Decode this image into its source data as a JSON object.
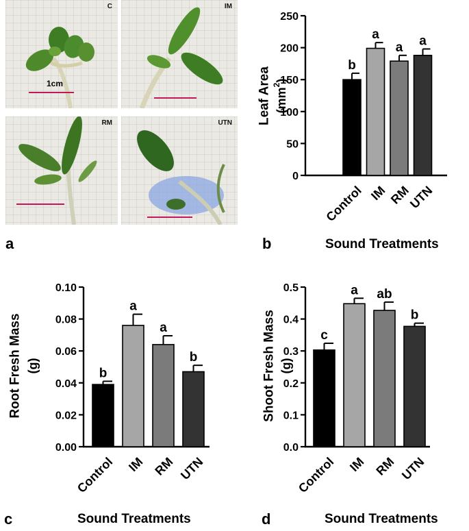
{
  "panels": {
    "a": {
      "letter": "a",
      "photos": [
        {
          "label": "C",
          "scale_label": "1cm"
        },
        {
          "label": "IM"
        },
        {
          "label": "RM"
        },
        {
          "label": "UTN"
        }
      ]
    },
    "b": {
      "letter": "b",
      "xlabel": "Sound Treatments"
    },
    "c": {
      "letter": "c",
      "xlabel": "Sound Treatments"
    },
    "d": {
      "letter": "d",
      "xlabel": "Sound Treatments"
    }
  },
  "colors": {
    "bars": [
      "#000000",
      "#a6a6a6",
      "#7b7b7b",
      "#333333"
    ],
    "scale_bar": "#c2185b",
    "grid_bg": "#eceae4",
    "grid_line": "#c9c6c0"
  },
  "chart_data": [
    {
      "id": "b",
      "type": "bar",
      "categories": [
        "Control",
        "IM",
        "RM",
        "UTN"
      ],
      "values": [
        150,
        199,
        179,
        188
      ],
      "errors": [
        10,
        9,
        9,
        10
      ],
      "letters": [
        "b",
        "a",
        "a",
        "a"
      ],
      "ylabel": "Leaf Area",
      "yunit_prefix": "(mm",
      "yunit_sup": "2",
      "yunit_suffix": ")",
      "ylim": [
        0,
        250
      ],
      "yticks": [
        "0",
        "50",
        "100",
        "150",
        "200",
        "250"
      ]
    },
    {
      "id": "c",
      "type": "bar",
      "categories": [
        "Control",
        "IM",
        "RM",
        "UTN"
      ],
      "values": [
        0.039,
        0.076,
        0.064,
        0.047
      ],
      "errors": [
        0.002,
        0.007,
        0.0055,
        0.004
      ],
      "letters": [
        "b",
        "a",
        "a",
        "b"
      ],
      "ylabel": "Root Fresh Mass",
      "yunit": "(g)",
      "ylim": [
        0,
        0.1
      ],
      "yticks": [
        "0.00",
        "0.02",
        "0.04",
        "0.06",
        "0.08",
        "0.10"
      ]
    },
    {
      "id": "d",
      "type": "bar",
      "categories": [
        "Control",
        "IM",
        "RM",
        "UTN"
      ],
      "values": [
        0.303,
        0.448,
        0.427,
        0.377
      ],
      "errors": [
        0.021,
        0.017,
        0.026,
        0.01
      ],
      "letters": [
        "c",
        "a",
        "ab",
        "b"
      ],
      "ylabel": "Shoot Fresh Mass",
      "yunit": "(g)",
      "ylim": [
        0,
        0.5
      ],
      "yticks": [
        "0.0",
        "0.1",
        "0.2",
        "0.3",
        "0.4",
        "0.5"
      ]
    }
  ]
}
